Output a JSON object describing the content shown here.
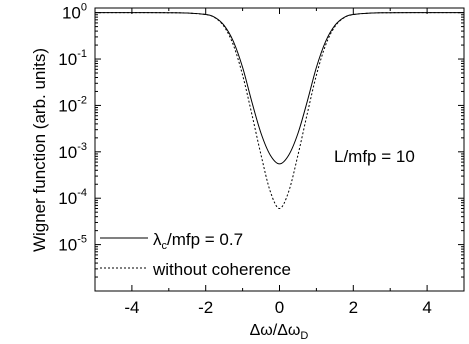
{
  "chart_data": {
    "type": "line",
    "title": "",
    "xlabel": {
      "main": "Δω/Δω",
      "sub": "D"
    },
    "ylabel": "Wigner function (arb. units)",
    "xlim": [
      -5,
      5
    ],
    "ylim_log10": [
      -6,
      0.1
    ],
    "y_scale": "log",
    "grid": false,
    "x_ticks": [
      -4,
      -2,
      0,
      2,
      4
    ],
    "y_ticks": [
      {
        "base": "10",
        "exp": "0"
      },
      {
        "base": "10",
        "exp": "-1"
      },
      {
        "base": "10",
        "exp": "-2"
      },
      {
        "base": "10",
        "exp": "-3"
      },
      {
        "base": "10",
        "exp": "-4"
      },
      {
        "base": "10",
        "exp": "-5"
      }
    ],
    "annotation": "L/mfp = 10",
    "legend_position": "bottom-left",
    "series": [
      {
        "name": "λ/mfp = 0.7",
        "name_parts": {
          "pre": "λ",
          "sub": "c",
          "post": "/mfp = 0.7"
        },
        "style": "solid",
        "x": [
          -5,
          -4,
          -3,
          -2.5,
          -2,
          -1.75,
          -1.5,
          -1.25,
          -1,
          -0.75,
          -0.5,
          -0.25,
          0,
          0.25,
          0.5,
          0.75,
          1,
          1.25,
          1.5,
          1.75,
          2,
          2.5,
          3,
          4,
          5
        ],
        "y": [
          1,
          1,
          0.997,
          0.98,
          0.91,
          0.79,
          0.53,
          0.24,
          0.066,
          0.012,
          0.0025,
          0.00085,
          0.00055,
          0.00085,
          0.0025,
          0.012,
          0.066,
          0.24,
          0.53,
          0.79,
          0.91,
          0.98,
          0.997,
          1,
          1
        ]
      },
      {
        "name": "without coherence",
        "style": "dashed",
        "x": [
          -5,
          -4,
          -3,
          -2.5,
          -2,
          -1.75,
          -1.5,
          -1.25,
          -1,
          -0.75,
          -0.5,
          -0.25,
          0,
          0.25,
          0.5,
          0.75,
          1,
          1.25,
          1.5,
          1.75,
          2,
          2.5,
          3,
          4,
          5
        ],
        "y": [
          1,
          1,
          0.997,
          0.98,
          0.91,
          0.78,
          0.5,
          0.2,
          0.045,
          0.0065,
          0.00085,
          0.00014,
          6e-05,
          0.00014,
          0.00085,
          0.0065,
          0.045,
          0.2,
          0.5,
          0.78,
          0.91,
          0.98,
          0.997,
          1,
          1
        ]
      }
    ]
  }
}
